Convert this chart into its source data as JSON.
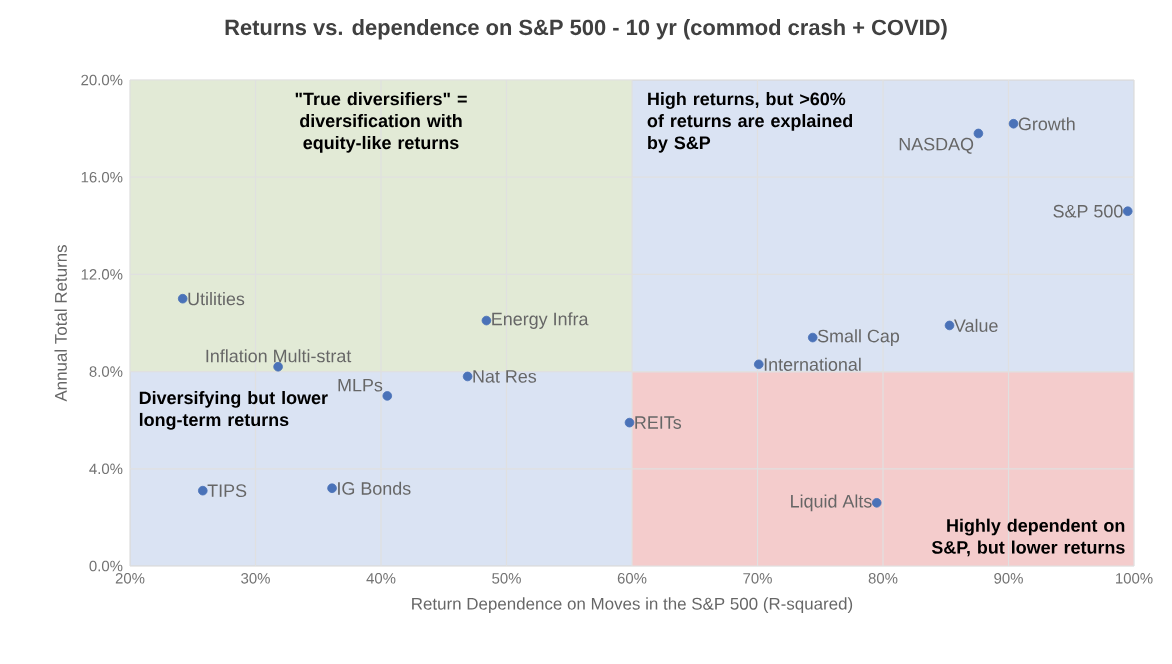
{
  "chart_data": {
    "type": "scatter",
    "title": "Returns vs. dependence on S&P 500 - 10 yr (commod crash + COVID)",
    "xlabel": "Return Dependence on Moves in the S&P 500 (R-squared)",
    "ylabel": "Annual Total Returns",
    "xlim": [
      20,
      100
    ],
    "xticks": [
      {
        "value": 20,
        "label": "20%"
      },
      {
        "value": 30,
        "label": "30%"
      },
      {
        "value": 40,
        "label": "40%"
      },
      {
        "value": 50,
        "label": "50%"
      },
      {
        "value": 60,
        "label": "60%"
      },
      {
        "value": 70,
        "label": "70%"
      },
      {
        "value": 80,
        "label": "80%"
      },
      {
        "value": 90,
        "label": "90%"
      },
      {
        "value": 100,
        "label": "100%"
      }
    ],
    "ylim": [
      0,
      20
    ],
    "yticks": [
      {
        "value": 0,
        "label": "0.0%"
      },
      {
        "value": 4,
        "label": "4.0%"
      },
      {
        "value": 8,
        "label": "8.0%"
      },
      {
        "value": 12,
        "label": "12.0%"
      },
      {
        "value": 16,
        "label": "16.0%"
      },
      {
        "value": 20,
        "label": "20.0%"
      }
    ],
    "grid": true,
    "marker": "circle",
    "ref_lines": [
      {
        "axis": "y",
        "value": 8,
        "color": "#dae3f3"
      }
    ],
    "bands": [
      {
        "axis": "x",
        "from": 20,
        "to": 60,
        "color": "#e2ead6"
      },
      {
        "axis": "x",
        "from": 60,
        "to": 100,
        "color": "#f4cccc"
      }
    ],
    "series": [
      {
        "name": "Utilities",
        "color": "#4a72b8",
        "x": [
          24.2
        ],
        "values": [
          11.0
        ]
      },
      {
        "name": "Inflation Multi-strat",
        "color": "#4a72b8",
        "x": [
          31.8
        ],
        "values": [
          8.2
        ]
      },
      {
        "name": "Energy Infra",
        "color": "#4a72b8",
        "x": [
          48.4
        ],
        "values": [
          10.1
        ]
      },
      {
        "name": "MLPs",
        "color": "#4a72b8",
        "x": [
          40.5
        ],
        "values": [
          7.0
        ]
      },
      {
        "name": "Nat Res",
        "color": "#4a72b8",
        "x": [
          46.9
        ],
        "values": [
          7.8
        ]
      },
      {
        "name": "TIPS",
        "color": "#4a72b8",
        "x": [
          25.8
        ],
        "values": [
          3.1
        ]
      },
      {
        "name": "IG Bonds",
        "color": "#4a72b8",
        "x": [
          36.1
        ],
        "values": [
          3.2
        ]
      },
      {
        "name": "NASDAQ",
        "color": "#4a72b8",
        "x": [
          87.6
        ],
        "values": [
          17.8
        ]
      },
      {
        "name": "Growth",
        "color": "#4a72b8",
        "x": [
          90.4
        ],
        "values": [
          18.2
        ]
      },
      {
        "name": "S&P 500",
        "color": "#4a72b8",
        "x": [
          99.5
        ],
        "values": [
          14.6
        ]
      },
      {
        "name": "Value",
        "color": "#4a72b8",
        "x": [
          85.3
        ],
        "values": [
          9.9
        ]
      },
      {
        "name": "Small Cap",
        "color": "#4a72b8",
        "x": [
          74.4
        ],
        "values": [
          9.4
        ]
      },
      {
        "name": "International",
        "color": "#4a72b8",
        "x": [
          70.1
        ],
        "values": [
          8.3
        ]
      },
      {
        "name": "REITs",
        "color": "#4a72b8",
        "x": [
          59.8
        ],
        "values": [
          5.9
        ]
      },
      {
        "name": "Liquid Alts",
        "color": "#4a72b8",
        "x": [
          79.5
        ],
        "values": [
          2.6
        ]
      }
    ],
    "annotations": [
      "\"True diversifiers\" = diversification with equity-like returns",
      "High returns, but >60% of returns are explained by S&P",
      "Diversifying but lower long-term returns",
      "Highly dependent on S&P, but lower returns"
    ]
  }
}
